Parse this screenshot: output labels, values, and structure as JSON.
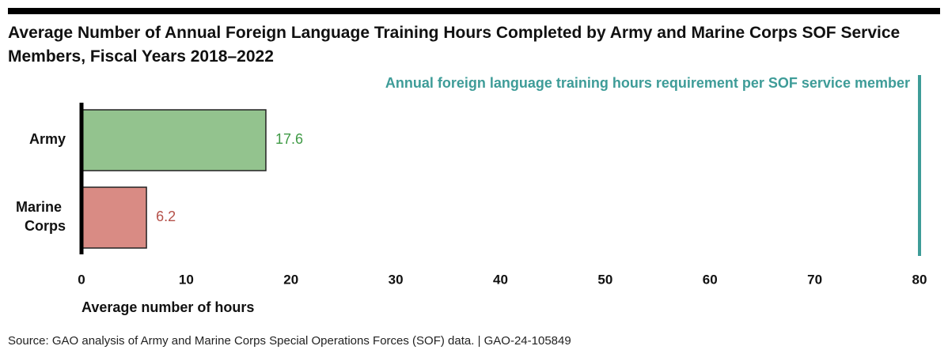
{
  "chart_data": {
    "type": "hbar",
    "title": "Average Number of Annual Foreign Language Training Hours Completed by Army and Marine Corps SOF Service Members, Fiscal Years 2018–2022",
    "categories": [
      "Army",
      "Marine Corps"
    ],
    "values": [
      17.6,
      6.2
    ],
    "colors": [
      "#93c38e",
      "#d98b84"
    ],
    "value_label_colors": [
      "#3f9a45",
      "#b5514a"
    ],
    "xlim": [
      0,
      80
    ],
    "xticks": [
      0,
      10,
      20,
      30,
      40,
      50,
      60,
      70,
      80
    ],
    "xlabel": "Average number of hours",
    "reference_line": {
      "value": 80,
      "label": "Annual foreign language training hours requirement per SOF service member",
      "color": "#3e9c98"
    },
    "source": "Source: GAO analysis of Army and Marine Corps Special Operations Forces (SOF) data.  |  GAO-24-105849"
  }
}
